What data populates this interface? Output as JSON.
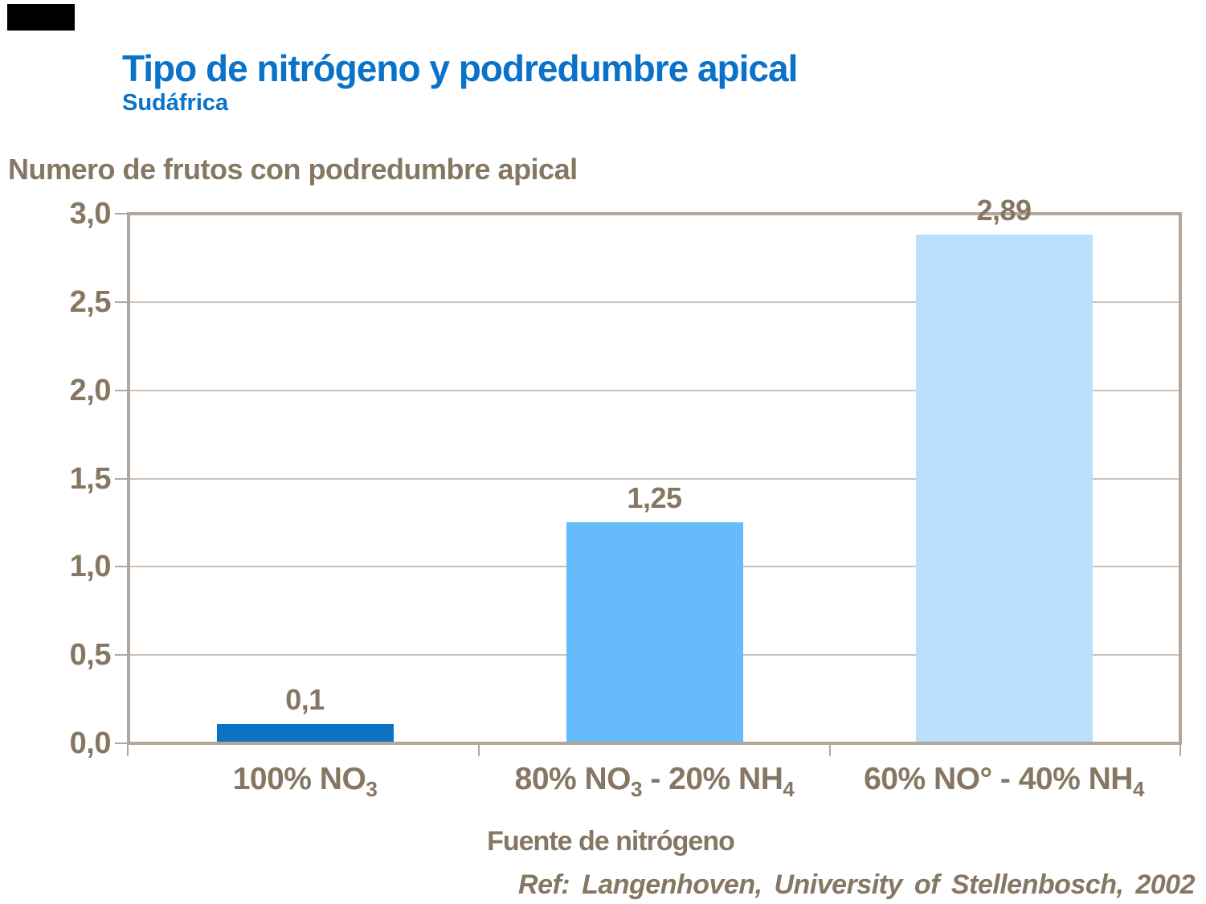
{
  "page": {
    "background": "#FFFFFF"
  },
  "header": {
    "title": "Tipo de nitrógeno y podredumbre apical",
    "subtitle": "Sudáfrica",
    "title_color": "#0A72C8"
  },
  "footer": {
    "reference": "Ref: Langenhoven, University of Stellenbosch, 2002"
  },
  "chart_data": {
    "type": "bar",
    "title": "Tipo de nitrógeno y podredumbre apical",
    "subtitle": "Sudáfrica",
    "ylabel": "Numero de frutos con podredumbre apical",
    "xlabel": "Fuente de nitrógeno",
    "categories": [
      "100% NO₃",
      "80% NO₃ - 20% NH₄",
      "60% NO° - 40% NH₄"
    ],
    "categories_rich": [
      {
        "parts": [
          {
            "t": "100% NO"
          },
          {
            "t": "3",
            "sub": true
          }
        ]
      },
      {
        "parts": [
          {
            "t": "80% NO"
          },
          {
            "t": "3",
            "sub": true
          },
          {
            "t": " - 20% NH"
          },
          {
            "t": "4",
            "sub": true
          }
        ]
      },
      {
        "parts": [
          {
            "t": "60% NO° - 40% NH"
          },
          {
            "t": "4",
            "sub": true
          }
        ]
      }
    ],
    "values": [
      0.1,
      1.25,
      2.89
    ],
    "value_labels": [
      "0,1",
      "1,25",
      "2,89"
    ],
    "bar_colors": [
      "#0C72C4",
      "#66BBFB",
      "#BCDFFB"
    ],
    "ylim": [
      0,
      3
    ],
    "yticks": [
      {
        "v": 3.0,
        "label": "3,0"
      },
      {
        "v": 2.5,
        "label": "2,5"
      },
      {
        "v": 2.0,
        "label": "2,0"
      },
      {
        "v": 1.5,
        "label": "1,5"
      },
      {
        "v": 1.0,
        "label": "1,0"
      },
      {
        "v": 0.5,
        "label": "0,5"
      },
      {
        "v": 0.0,
        "label": "0,0"
      }
    ],
    "grid": "horizontal",
    "legend": "none",
    "plot_border_color": "#B2A79A",
    "gridline_color": "#CBC2B7",
    "text_color": "#867762",
    "title_color": "#0A72C8"
  }
}
